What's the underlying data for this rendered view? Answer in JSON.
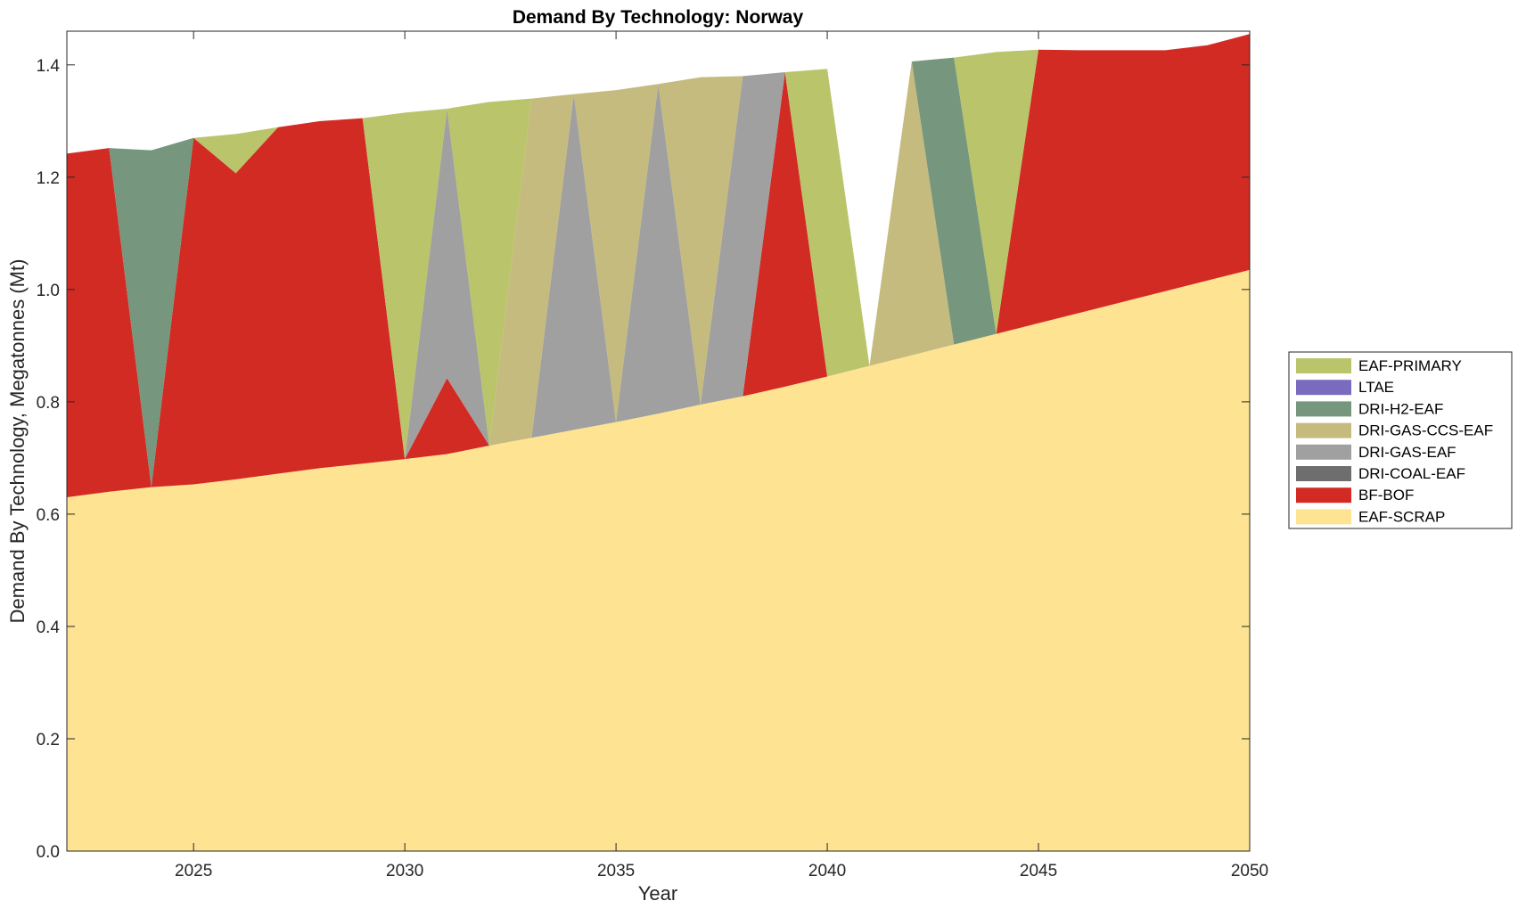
{
  "chart_data": {
    "type": "area",
    "stacked": true,
    "title": "Demand By Technology: Norway",
    "xlabel": "Year",
    "ylabel": "Demand By Technology, Megatonnes (Mt)",
    "xlim": [
      2022,
      2050
    ],
    "ylim": [
      0,
      1.46
    ],
    "xticks": [
      2025,
      2030,
      2035,
      2040,
      2045,
      2050
    ],
    "yticks": [
      0,
      0.2,
      0.4,
      0.6,
      0.8,
      1.0,
      1.2,
      1.4
    ],
    "ytick_labels": [
      "0.0",
      "0.2",
      "0.4",
      "0.6",
      "0.8",
      "1.0",
      "1.2",
      "1.4"
    ],
    "legend_position": "outside-right",
    "x": [
      2022,
      2023,
      2024,
      2025,
      2026,
      2027,
      2028,
      2029,
      2030,
      2031,
      2032,
      2033,
      2034,
      2035,
      2036,
      2037,
      2038,
      2039,
      2040,
      2041,
      2042,
      2043,
      2044,
      2045,
      2046,
      2047,
      2048,
      2049,
      2050
    ],
    "series": [
      {
        "name": "EAF-SCRAP",
        "color": "#FDE392",
        "values": [
          0.63,
          0.64,
          0.648,
          0.653,
          0.662,
          0.672,
          0.682,
          0.69,
          0.698,
          0.707,
          0.722,
          0.736,
          0.75,
          0.764,
          0.779,
          0.795,
          0.81,
          0.827,
          0.845,
          0.864,
          0.883,
          0.902,
          0.921,
          0.94,
          0.959,
          0.978,
          0.997,
          1.016,
          1.035
        ]
      },
      {
        "name": "BF-BOF",
        "color": "#D22B24",
        "values": [
          0.612,
          0.612,
          0,
          0.617,
          0.545,
          0.617,
          0.618,
          0.615,
          0,
          0.135,
          0,
          0,
          0,
          0,
          0,
          0,
          0,
          0.56,
          0,
          0,
          0,
          0,
          0,
          0.487,
          0.467,
          0.448,
          0.429,
          0.419,
          0.42
        ]
      },
      {
        "name": "DRI-COAL-EAF",
        "color": "#6E6E6E",
        "values": [
          0,
          0,
          0,
          0,
          0,
          0,
          0,
          0,
          0,
          0,
          0,
          0,
          0,
          0,
          0,
          0,
          0,
          0,
          0,
          0,
          0,
          0,
          0,
          0,
          0,
          0,
          0,
          0,
          0
        ]
      },
      {
        "name": "DRI-GAS-EAF",
        "color": "#A0A0A0",
        "values": [
          0,
          0,
          0,
          0,
          0,
          0,
          0,
          0,
          0,
          0.48,
          0,
          0,
          0.598,
          0,
          0.587,
          0,
          0.57,
          0,
          0,
          0,
          0,
          0,
          0,
          0,
          0,
          0,
          0,
          0,
          0
        ]
      },
      {
        "name": "DRI-GAS-CCS-EAF",
        "color": "#C5BB7F",
        "values": [
          0,
          0,
          0,
          0,
          0,
          0,
          0,
          0,
          0,
          0,
          0,
          0.604,
          0,
          0.591,
          0,
          0.583,
          0,
          0,
          0,
          0,
          0.523,
          0,
          0,
          0,
          0,
          0,
          0,
          0,
          0
        ]
      },
      {
        "name": "DRI-H2-EAF",
        "color": "#76977D",
        "values": [
          0,
          0,
          0.6,
          0,
          0,
          0,
          0,
          0,
          0,
          0,
          0,
          0,
          0,
          0,
          0,
          0,
          0,
          0,
          0,
          0,
          0,
          0.511,
          0,
          0,
          0,
          0,
          0,
          0,
          0
        ]
      },
      {
        "name": "LTAE",
        "color": "#7B6BBF",
        "values": [
          0,
          0,
          0,
          0,
          0,
          0,
          0,
          0,
          0,
          0,
          0,
          0,
          0,
          0,
          0,
          0,
          0,
          0,
          0,
          0,
          0,
          0,
          0,
          0,
          0,
          0,
          0,
          0,
          0
        ]
      },
      {
        "name": "EAF-PRIMARY",
        "color": "#BAC46A",
        "values": [
          0,
          0,
          0,
          0,
          0.07,
          0,
          0,
          0,
          0.617,
          0,
          0.612,
          0,
          0,
          0,
          0,
          0,
          0,
          0,
          0.548,
          0,
          0,
          0,
          0.502,
          0,
          0,
          0,
          0,
          0,
          0
        ]
      }
    ],
    "legend_order": [
      "EAF-PRIMARY",
      "LTAE",
      "DRI-H2-EAF",
      "DRI-GAS-CCS-EAF",
      "DRI-GAS-EAF",
      "DRI-COAL-EAF",
      "BF-BOF",
      "EAF-SCRAP"
    ]
  }
}
